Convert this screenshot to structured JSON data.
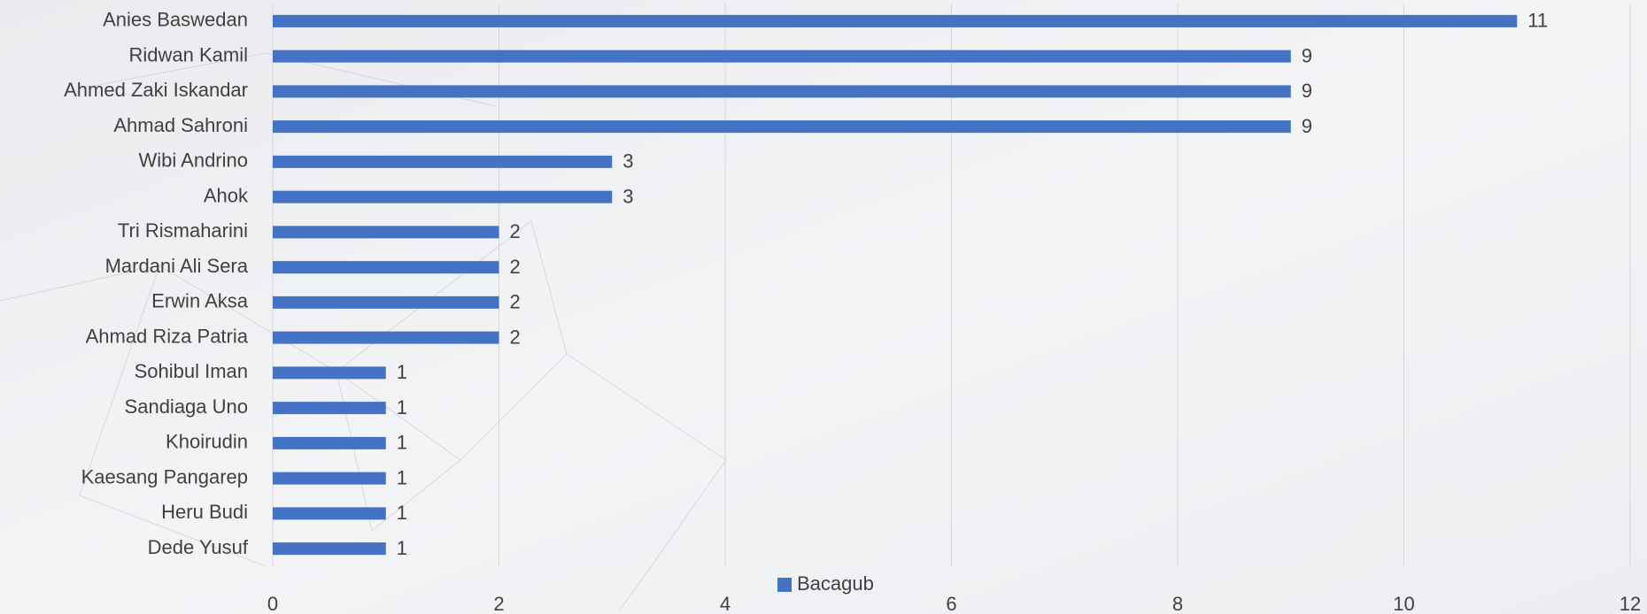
{
  "chart_data": {
    "type": "bar",
    "orientation": "horizontal",
    "categories": [
      "Anies Baswedan",
      "Ridwan Kamil",
      "Ahmed Zaki Iskandar",
      "Ahmad Sahroni",
      "Wibi Andrino",
      "Ahok",
      "Tri Rismaharini",
      "Mardani Ali Sera",
      "Erwin Aksa",
      "Ahmad Riza Patria",
      "Sohibul Iman",
      "Sandiaga Uno",
      "Khoirudin",
      "Kaesang Pangarep",
      "Heru Budi",
      "Dede Yusuf"
    ],
    "series": [
      {
        "name": "Bacagub",
        "color": "#4472c4",
        "values": [
          11,
          9,
          9,
          9,
          3,
          3,
          2,
          2,
          2,
          2,
          1,
          1,
          1,
          1,
          1,
          1
        ]
      }
    ],
    "xlim": [
      0,
      12
    ],
    "xticks": [
      0,
      2,
      4,
      6,
      8,
      10,
      12
    ],
    "grid": true,
    "legend": "bottom"
  }
}
